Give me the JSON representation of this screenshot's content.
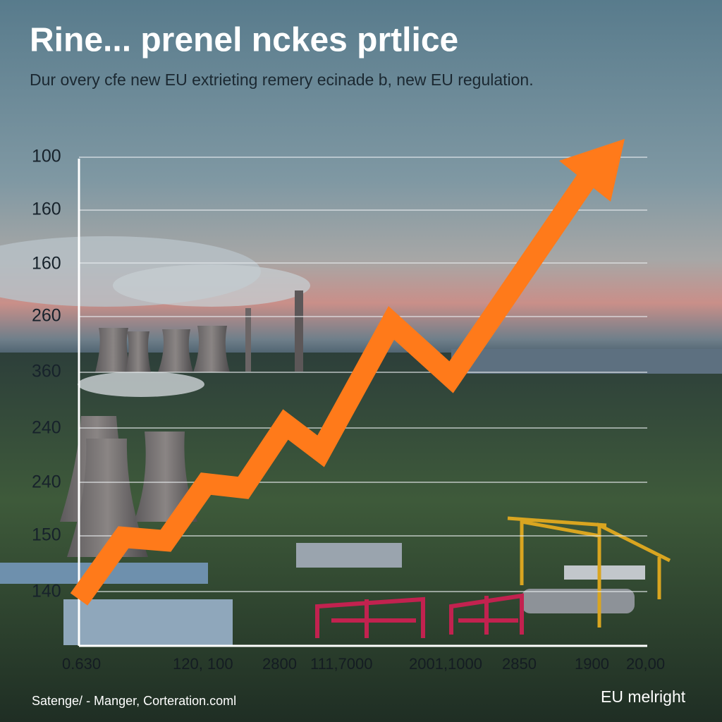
{
  "header": {
    "title": "Rine... prenel nckes prtlice",
    "subtitle": "Dur overy cfe new EU extrieting remery ecinade b, new EU regulation."
  },
  "y_axis_labels": [
    "100",
    "160",
    "160",
    "260",
    "360",
    "240",
    "240",
    "150",
    "140"
  ],
  "x_axis_labels": [
    "0.630",
    "120, 100",
    "2800",
    "111,7000",
    "2001,1000",
    "2850",
    "1900",
    "20,00"
  ],
  "footer": {
    "source": "Satenge/ - Manger, Corteration.coml",
    "brand": "EU melright"
  }
}
